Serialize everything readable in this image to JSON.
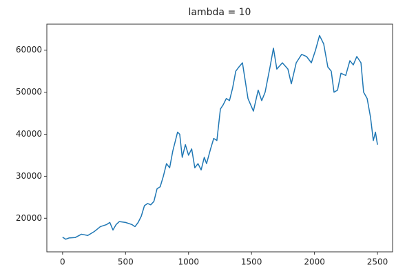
{
  "chart_data": {
    "type": "line",
    "title": "lambda = 10",
    "x": [
      0,
      25,
      50,
      100,
      150,
      200,
      250,
      300,
      350,
      375,
      400,
      425,
      450,
      500,
      550,
      575,
      600,
      625,
      650,
      675,
      700,
      725,
      750,
      775,
      800,
      825,
      850,
      875,
      913,
      930,
      950,
      975,
      1000,
      1025,
      1050,
      1075,
      1100,
      1125,
      1143,
      1175,
      1200,
      1225,
      1253,
      1275,
      1300,
      1325,
      1350,
      1375,
      1400,
      1428,
      1472,
      1515,
      1553,
      1581,
      1608,
      1647,
      1674,
      1701,
      1745,
      1789,
      1816,
      1855,
      1898,
      1937,
      1975,
      2008,
      2040,
      2073,
      2106,
      2133,
      2155,
      2183,
      2210,
      2248,
      2281,
      2308,
      2336,
      2369,
      2390,
      2418,
      2445,
      2467,
      2484,
      2500
    ],
    "series": [
      {
        "name": "lambda = 10",
        "color": "#1f77b4",
        "values": [
          15500,
          15000,
          15300,
          15400,
          16200,
          15900,
          16800,
          18000,
          18500,
          19000,
          17200,
          18500,
          19200,
          19000,
          18500,
          18000,
          19000,
          20500,
          23000,
          23500,
          23200,
          24000,
          27000,
          27500,
          30000,
          33000,
          32000,
          36000,
          40500,
          40000,
          34500,
          37500,
          35000,
          36500,
          32000,
          33000,
          31500,
          34500,
          33000,
          36500,
          39000,
          38500,
          46000,
          47000,
          48500,
          48000,
          51000,
          55000,
          56000,
          57000,
          48500,
          45500,
          50500,
          48000,
          50000,
          56000,
          60500,
          55500,
          57000,
          55500,
          52000,
          57000,
          59000,
          58500,
          57000,
          60000,
          63500,
          61500,
          56000,
          55000,
          50000,
          50500,
          54500,
          54000,
          57500,
          56500,
          58500,
          57000,
          50000,
          48500,
          44000,
          38500,
          40500,
          37500
        ]
      }
    ],
    "xlim": [
      -125,
      2620
    ],
    "xticks": [
      0,
      500,
      1000,
      1500,
      2000,
      2500
    ],
    "ylim": [
      12000,
      66200
    ],
    "yticks": [
      20000,
      30000,
      40000,
      50000,
      60000
    ]
  }
}
